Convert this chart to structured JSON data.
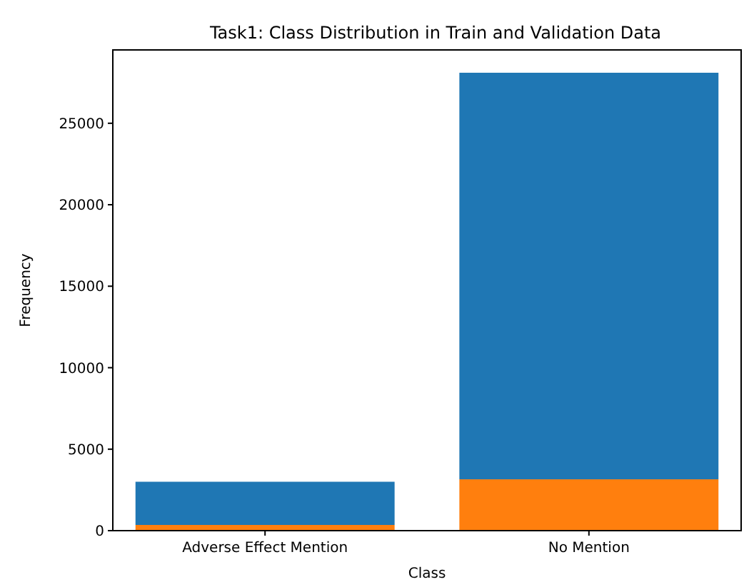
{
  "chart_data": {
    "type": "bar",
    "title": "Task1: Class Distribution in Train and Validation Data",
    "xlabel": "Class",
    "ylabel": "Frequency",
    "categories": [
      "Adverse Effect Mention",
      "No Mention"
    ],
    "stacked": true,
    "series": [
      {
        "color": "#ff7f0e",
        "values": [
          350,
          3150
        ]
      },
      {
        "color": "#1f77b4",
        "values": [
          2650,
          24950
        ]
      }
    ],
    "ylim": [
      0,
      29500
    ],
    "yticks": [
      0,
      5000,
      10000,
      15000,
      20000,
      25000
    ],
    "grid": false
  }
}
